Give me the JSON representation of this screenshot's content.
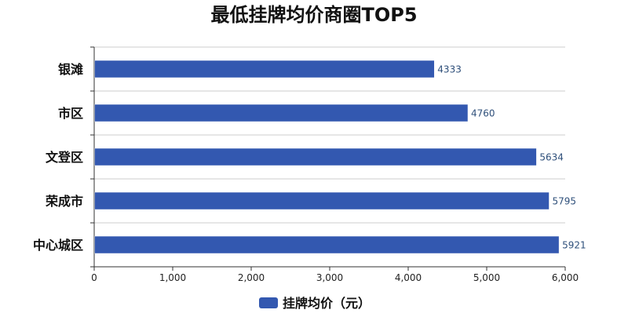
{
  "chart_data": {
    "type": "bar",
    "orientation": "horizontal",
    "title": "最低挂牌均价商圈TOP5",
    "categories": [
      "银滩",
      "市区",
      "文登区",
      "荣成市",
      "中心城区"
    ],
    "series": [
      {
        "name": "挂牌均价（元）",
        "values": [
          4333,
          4760,
          5634,
          5795,
          5921
        ],
        "color": "#3358b0"
      }
    ],
    "xlim": [
      0,
      6000
    ],
    "x_ticks": [
      0,
      1000,
      2000,
      3000,
      4000,
      5000,
      6000
    ],
    "x_tick_labels": [
      "0",
      "1,000",
      "2,000",
      "3,000",
      "4,000",
      "5,000",
      "6,000"
    ],
    "value_labels": [
      "4333",
      "4760",
      "5634",
      "5795",
      "5921"
    ],
    "grid": "horizontal lines between categories",
    "legend_position": "bottom-center",
    "xlabel": "",
    "ylabel": ""
  }
}
